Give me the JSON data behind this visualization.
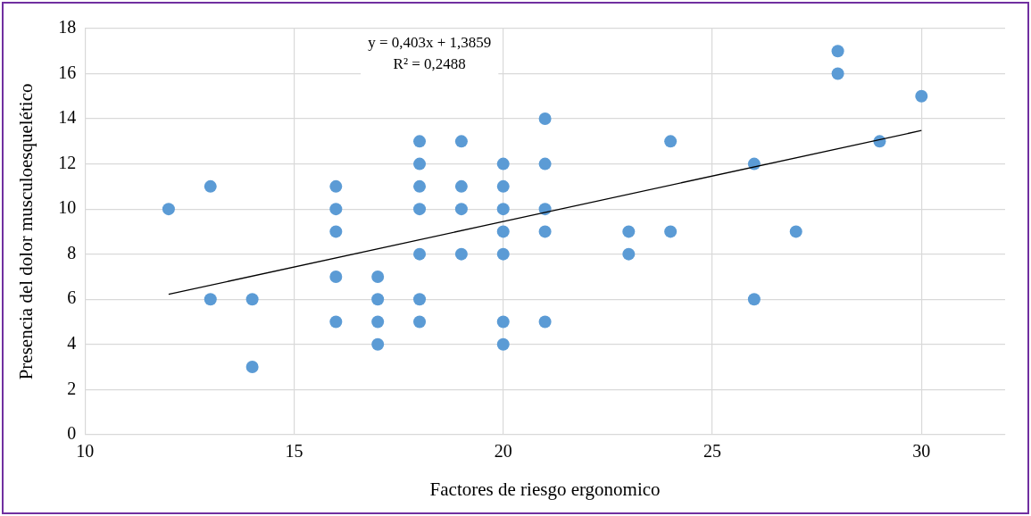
{
  "chart_data": {
    "type": "scatter",
    "xlabel": "Factores de riesgo ergonomico",
    "ylabel": "Presencia del dolor musculoesquelético",
    "annotations": [
      "y = 0,403x + 1,3859",
      "R² = 0,2488"
    ],
    "series": [
      {
        "type": "scatter",
        "color": "#5b9bd5",
        "marker": "circle",
        "x": [
          12,
          13,
          13,
          14,
          14,
          16,
          16,
          16,
          16,
          16,
          17,
          17,
          17,
          17,
          18,
          18,
          18,
          18,
          18,
          18,
          18,
          19,
          19,
          19,
          19,
          20,
          20,
          20,
          20,
          20,
          20,
          20,
          21,
          21,
          21,
          21,
          21,
          23,
          23,
          24,
          24,
          26,
          26,
          27,
          28,
          28,
          29,
          30
        ],
        "values": [
          10,
          11,
          6,
          6,
          3,
          11,
          10,
          9,
          7,
          5,
          7,
          6,
          5,
          4,
          13,
          12,
          11,
          10,
          8,
          6,
          5,
          13,
          11,
          10,
          8,
          12,
          11,
          10,
          9,
          8,
          5,
          4,
          14,
          12,
          10,
          9,
          5,
          9,
          8,
          13,
          9,
          12,
          6,
          9,
          17,
          16,
          13,
          15
        ]
      },
      {
        "type": "line",
        "color": "#000000",
        "marker": "none",
        "line_style": "solid",
        "x": [
          12,
          30
        ],
        "values": [
          6.22,
          13.48
        ]
      }
    ],
    "xlim": [
      10,
      32
    ],
    "xticks": [
      10,
      15,
      20,
      25,
      30
    ],
    "ylim": [
      0,
      18
    ],
    "yticks": [
      0,
      2,
      4,
      6,
      8,
      10,
      12,
      14,
      16,
      18
    ],
    "grid": true,
    "legend": false
  }
}
